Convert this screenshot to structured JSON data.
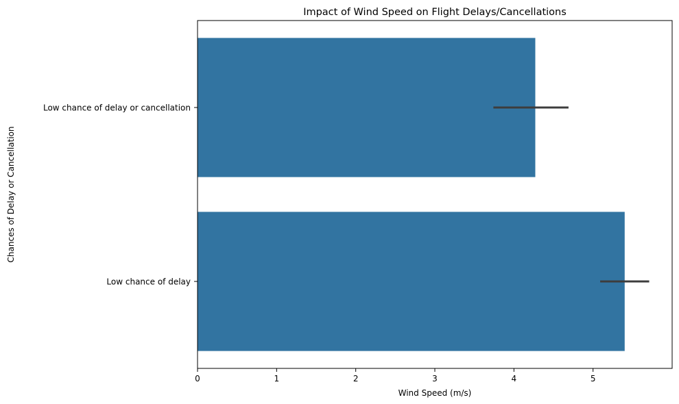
{
  "chart_data": {
    "type": "bar",
    "orientation": "horizontal",
    "title": "Impact of Wind Speed on Flight Delays/Cancellations",
    "xlabel": "Wind Speed (m/s)",
    "ylabel": "Chances of Delay or Cancellation",
    "categories": [
      "Low chance of delay or cancellation",
      "Low chance of delay"
    ],
    "values": [
      4.27,
      5.4
    ],
    "error_low": [
      3.74,
      5.09
    ],
    "error_high": [
      4.69,
      5.71
    ],
    "xlim": [
      0,
      6.0
    ],
    "xticks": [
      0,
      1,
      2,
      3,
      4,
      5
    ],
    "grid": false,
    "legend": "none",
    "bar_color": "#3274a1",
    "error_color": "#3d3d3d"
  }
}
